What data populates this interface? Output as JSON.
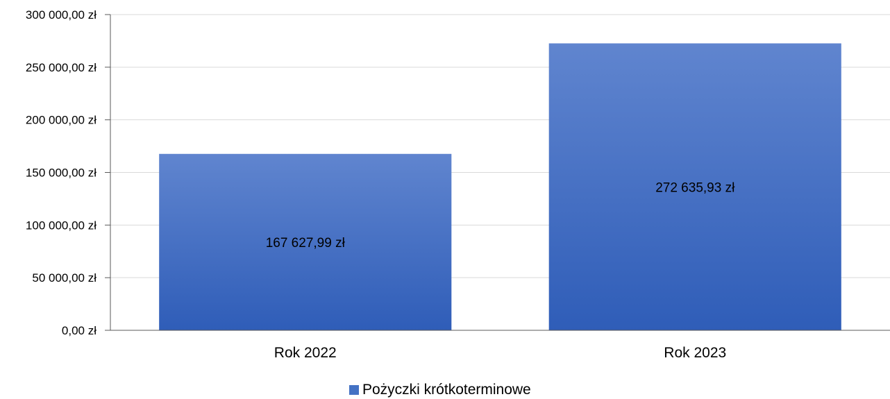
{
  "chart_data": {
    "type": "bar",
    "categories": [
      "Rok 2022",
      "Rok 2023"
    ],
    "series": [
      {
        "name": "Pożyczki krótkoterminowe",
        "values": [
          167627.99,
          272635.93
        ],
        "data_labels": [
          "167 627,99 zł",
          "272 635,93 zł"
        ],
        "color": "#4472C4"
      }
    ],
    "ylim": [
      0,
      300000
    ],
    "yticks": [
      0,
      50000,
      100000,
      150000,
      200000,
      250000,
      300000
    ],
    "ytick_labels": [
      "0,00 zł",
      "50 000,00 zł",
      "100 000,00 zł",
      "150 000,00 zł",
      "200 000,00 zł",
      "250 000,00 zł",
      "300 000,00 zł"
    ],
    "title": "",
    "xlabel": "",
    "ylabel": "",
    "grid": true,
    "legend_position": "bottom"
  },
  "colors": {
    "bar_top": "#6085CF",
    "bar_bottom": "#2F5DB8",
    "gridline": "#d9d9d9",
    "axis": "#595959"
  }
}
